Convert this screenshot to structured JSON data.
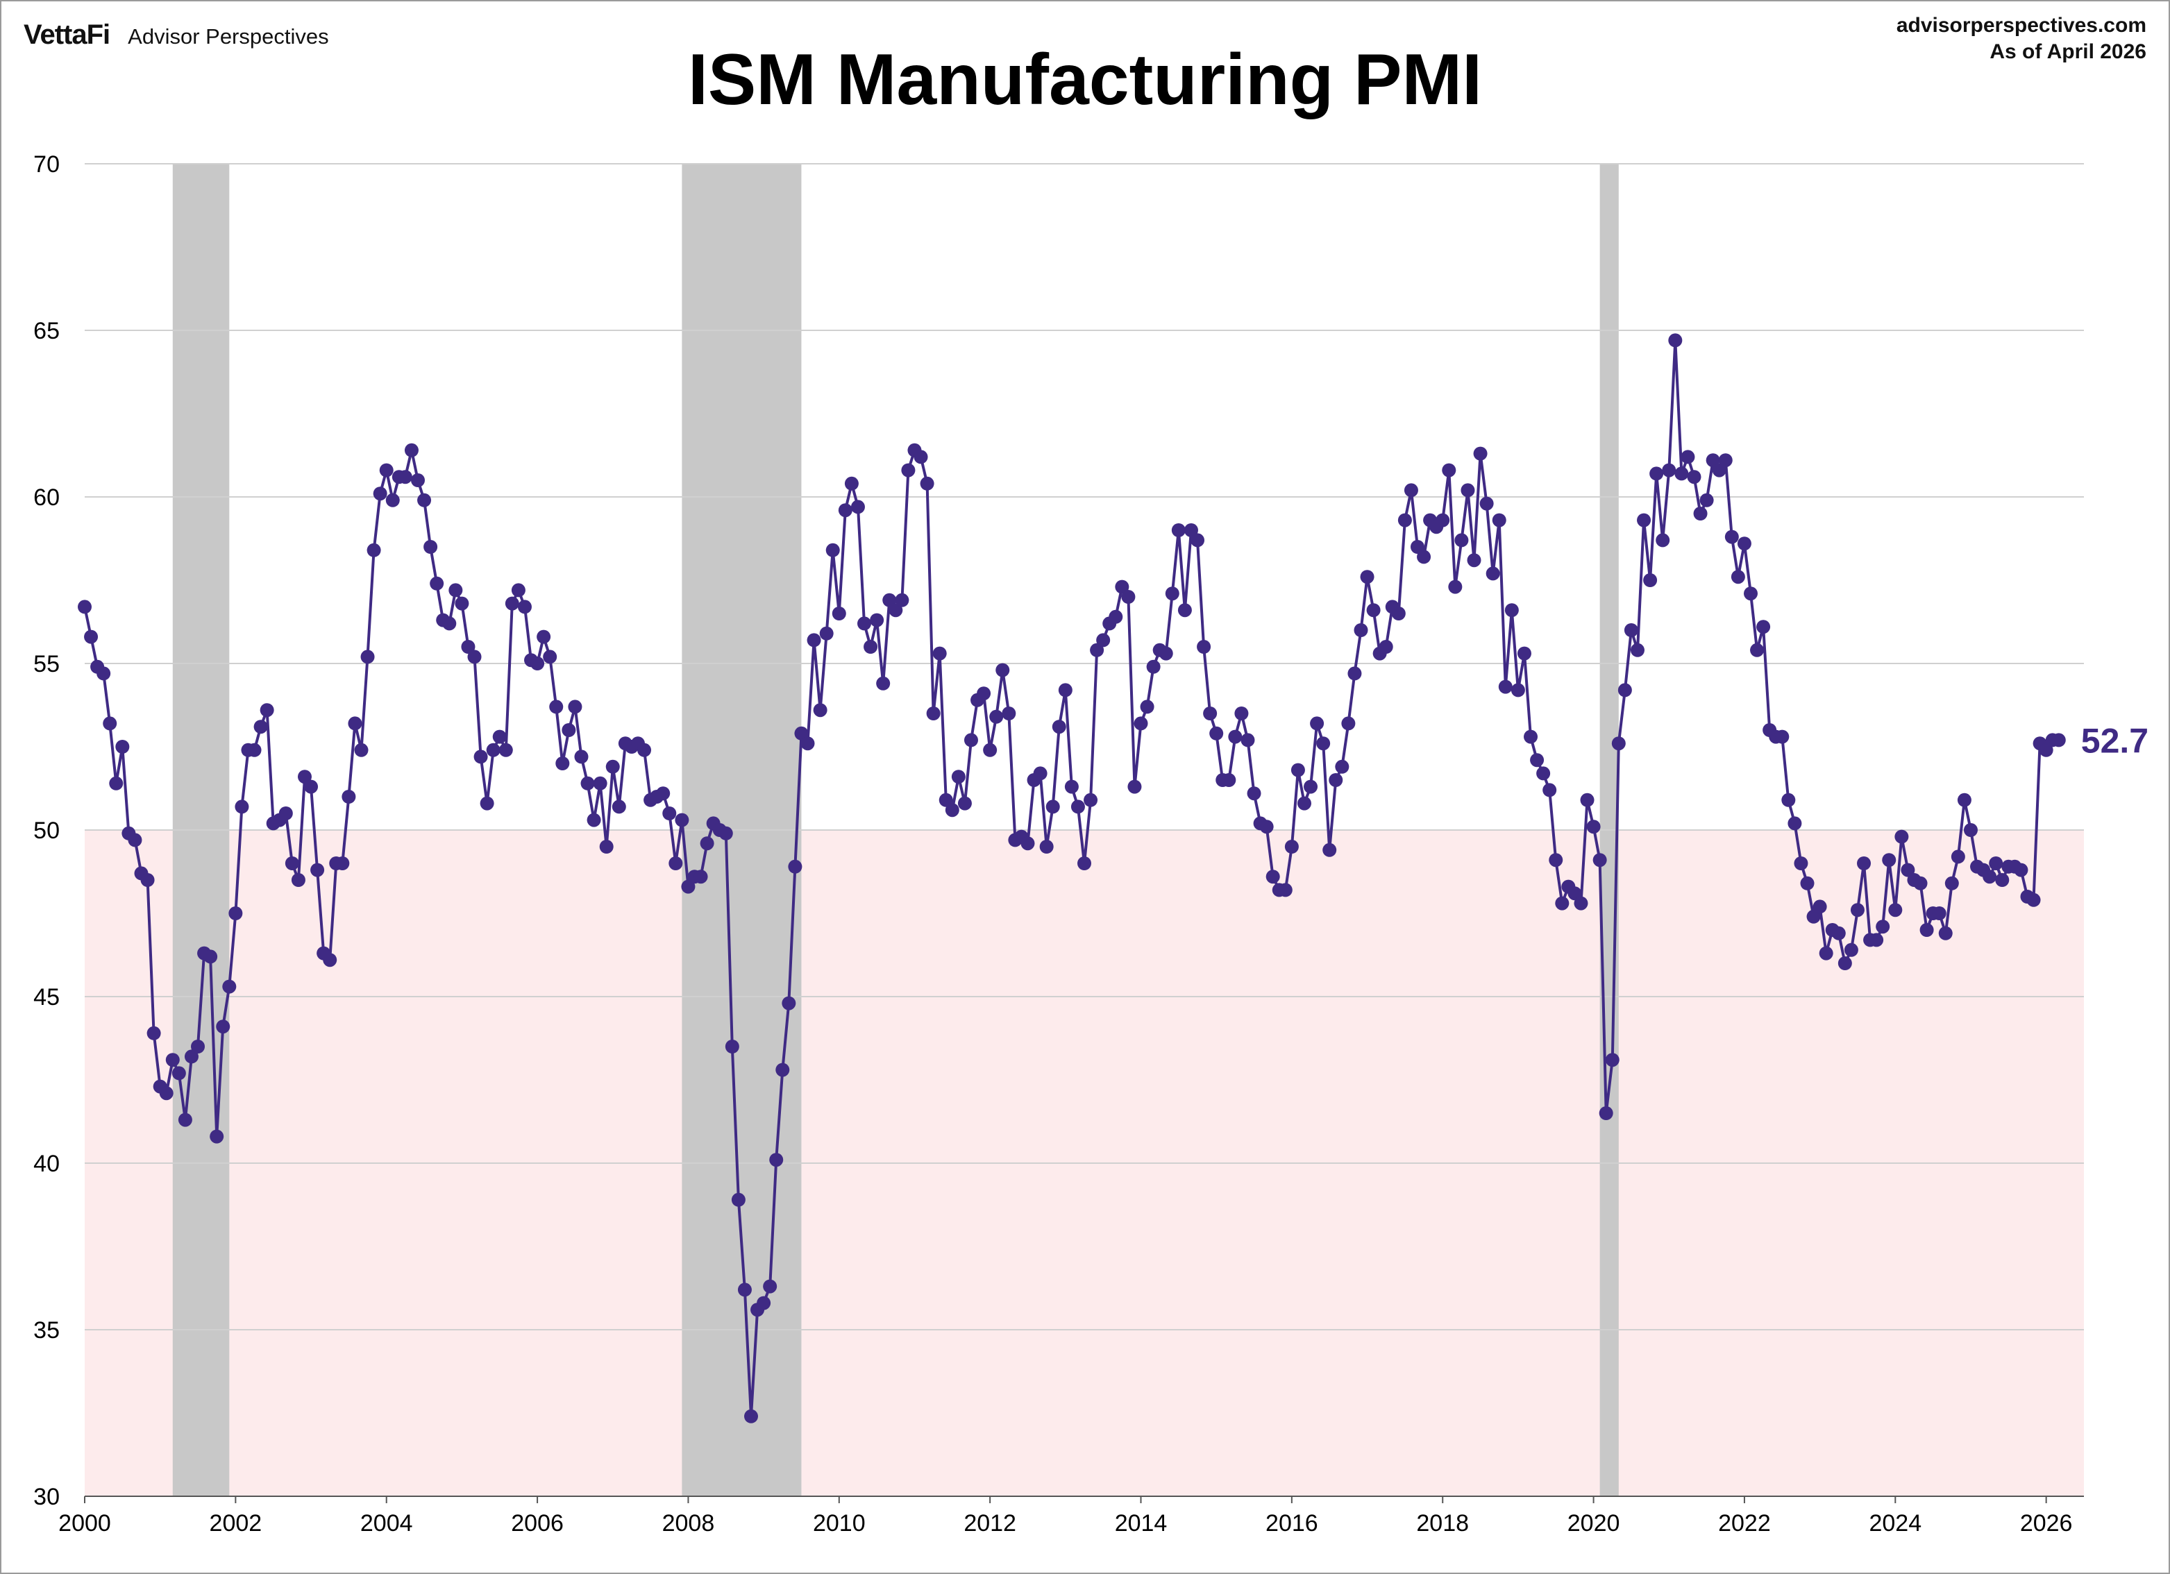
{
  "header": {
    "brand_logo": "VettaFi",
    "brand_name": "Advisor Perspectives",
    "source_site": "advisorperspectives.com",
    "as_of": "As of  April 2026"
  },
  "chart_data": {
    "type": "line",
    "title": "ISM Manufacturing PMI",
    "xlabel": "",
    "ylabel": "",
    "x_ticks": [
      "2000",
      "2002",
      "2004",
      "2006",
      "2008",
      "2010",
      "2012",
      "2014",
      "2016",
      "2018",
      "2020",
      "2022",
      "2024",
      "2026"
    ],
    "y_ticks": [
      "30",
      "35",
      "40",
      "45",
      "50",
      "55",
      "60",
      "65",
      "70"
    ],
    "xlim": [
      "2000-01",
      "2026-07"
    ],
    "ylim": [
      30,
      70
    ],
    "grid": true,
    "legend": "none",
    "colors": {
      "line": "#3f2a84",
      "recession": "#c8c8c8",
      "contraction_zone": "#fdebec",
      "last_label": "#3f2a84"
    },
    "contraction_zone": {
      "y_from": 30,
      "y_to": 50
    },
    "recessions": [
      {
        "start": "2001-03",
        "end": "2001-11"
      },
      {
        "start": "2007-12",
        "end": "2009-06"
      },
      {
        "start": "2020-02",
        "end": "2020-04"
      }
    ],
    "last_value_label": "52.7",
    "series": [
      {
        "start": "2000-01",
        "frequency": "monthly",
        "values": [
          56.7,
          55.8,
          54.9,
          54.7,
          53.2,
          51.4,
          52.5,
          49.9,
          49.7,
          48.7,
          48.5,
          43.9,
          42.3,
          42.1,
          43.1,
          42.7,
          41.3,
          43.2,
          43.5,
          46.3,
          46.2,
          40.8,
          44.1,
          45.3,
          47.5,
          50.7,
          52.4,
          52.4,
          53.1,
          53.6,
          50.2,
          50.3,
          50.5,
          49.0,
          48.5,
          51.6,
          51.3,
          48.8,
          46.3,
          46.1,
          49.0,
          49.0,
          51.0,
          53.2,
          52.4,
          55.2,
          58.4,
          60.1,
          60.8,
          59.9,
          60.6,
          60.6,
          61.4,
          60.5,
          59.9,
          58.5,
          57.4,
          56.3,
          56.2,
          57.2,
          56.8,
          55.5,
          55.2,
          52.2,
          50.8,
          52.4,
          52.8,
          52.4,
          56.8,
          57.2,
          56.7,
          55.1,
          55.0,
          55.8,
          55.2,
          53.7,
          52.0,
          53.0,
          53.7,
          52.2,
          51.4,
          50.3,
          51.4,
          49.5,
          51.9,
          50.7,
          52.6,
          52.5,
          52.6,
          52.4,
          50.9,
          51.0,
          51.1,
          50.5,
          49.0,
          50.3,
          48.3,
          48.6,
          48.6,
          49.6,
          50.2,
          50.0,
          49.9,
          43.5,
          38.9,
          36.2,
          32.4,
          35.6,
          35.8,
          36.3,
          40.1,
          42.8,
          44.8,
          48.9,
          52.9,
          52.6,
          55.7,
          53.6,
          55.9,
          58.4,
          56.5,
          59.6,
          60.4,
          59.7,
          56.2,
          55.5,
          56.3,
          54.4,
          56.9,
          56.6,
          56.9,
          60.8,
          61.4,
          61.2,
          60.4,
          53.5,
          55.3,
          50.9,
          50.6,
          51.6,
          50.8,
          52.7,
          53.9,
          54.1,
          52.4,
          53.4,
          54.8,
          53.5,
          49.7,
          49.8,
          49.6,
          51.5,
          51.7,
          49.5,
          50.7,
          53.1,
          54.2,
          51.3,
          50.7,
          49.0,
          50.9,
          55.4,
          55.7,
          56.2,
          56.4,
          57.3,
          57.0,
          51.3,
          53.2,
          53.7,
          54.9,
          55.4,
          55.3,
          57.1,
          59.0,
          56.6,
          59.0,
          58.7,
          55.5,
          53.5,
          52.9,
          51.5,
          51.5,
          52.8,
          53.5,
          52.7,
          51.1,
          50.2,
          50.1,
          48.6,
          48.2,
          48.2,
          49.5,
          51.8,
          50.8,
          51.3,
          53.2,
          52.6,
          49.4,
          51.5,
          51.9,
          53.2,
          54.7,
          56.0,
          57.6,
          56.6,
          55.3,
          55.5,
          56.7,
          56.5,
          59.3,
          60.2,
          58.5,
          58.2,
          59.3,
          59.1,
          59.3,
          60.8,
          57.3,
          58.7,
          60.2,
          58.1,
          61.3,
          59.8,
          57.7,
          59.3,
          54.3,
          56.6,
          54.2,
          55.3,
          52.8,
          52.1,
          51.7,
          51.2,
          49.1,
          47.8,
          48.3,
          48.1,
          47.8,
          50.9,
          50.1,
          49.1,
          41.5,
          43.1,
          52.6,
          54.2,
          56.0,
          55.4,
          59.3,
          57.5,
          60.7,
          58.7,
          60.8,
          64.7,
          60.7,
          61.2,
          60.6,
          59.5,
          59.9,
          61.1,
          60.8,
          61.1,
          58.8,
          57.6,
          58.6,
          57.1,
          55.4,
          56.1,
          53.0,
          52.8,
          52.8,
          50.9,
          50.2,
          49.0,
          48.4,
          47.4,
          47.7,
          46.3,
          47.0,
          46.9,
          46.0,
          46.4,
          47.6,
          49.0,
          46.7,
          46.7,
          47.1,
          49.1,
          47.6,
          49.8,
          48.8,
          48.5,
          48.4,
          47.0,
          47.5,
          47.5,
          46.9,
          48.4,
          49.2,
          50.9,
          50.0,
          48.9,
          48.8,
          48.6,
          49.0,
          48.5,
          48.9,
          48.9,
          48.8,
          48.0,
          47.9,
          52.6,
          52.4,
          52.7,
          52.7
        ]
      }
    ]
  }
}
